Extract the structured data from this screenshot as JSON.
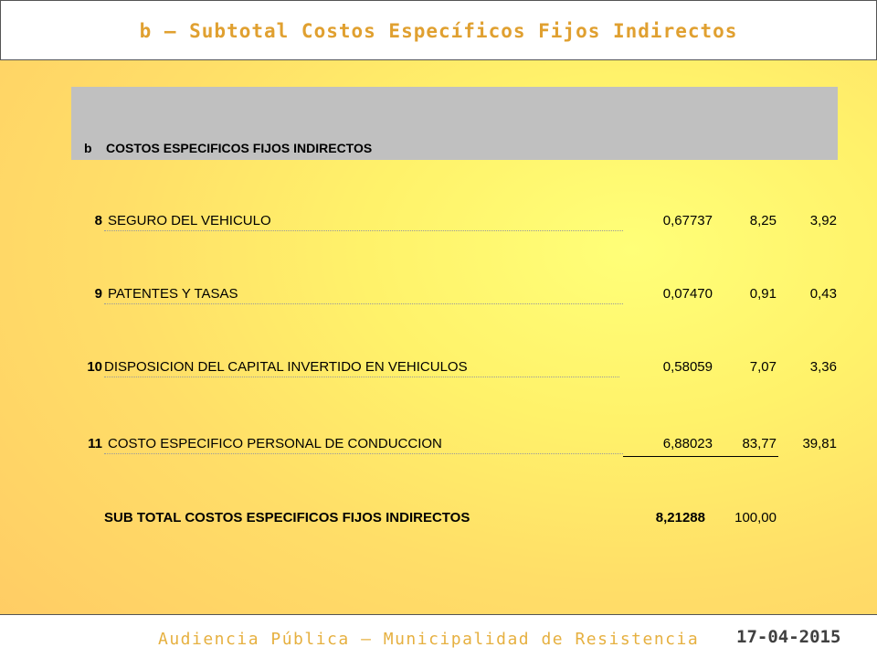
{
  "header": {
    "title": "b – Subtotal Costos Específicos Fijos Indirectos"
  },
  "table": {
    "section_code": "b",
    "section_label": "COSTOS ESPECIFICOS FIJOS INDIRECTOS",
    "rows": [
      {
        "num": "8",
        "desc": "SEGURO DEL VEHICULO",
        "v1": "0,67737",
        "v2": "8,25",
        "v3": "3,92"
      },
      {
        "num": "9",
        "desc": "PATENTES Y TASAS",
        "v1": "0,07470",
        "v2": "0,91",
        "v3": "0,43"
      },
      {
        "num": "10",
        "desc": "DISPOSICION DEL CAPITAL INVERTIDO EN VEHICULOS",
        "v1": "0,58059",
        "v2": "7,07",
        "v3": "3,36"
      },
      {
        "num": "11",
        "desc": "COSTO ESPECIFICO PERSONAL DE CONDUCCION",
        "v1": "6,88023",
        "v2": "83,77",
        "v3": "39,81"
      }
    ],
    "total": {
      "label": "SUB TOTAL COSTOS ESPECIFICOS FIJOS INDIRECTOS",
      "v1": "8,21288",
      "v2": "100,00"
    }
  },
  "footer": {
    "caption": "Audiencia Pública – Municipalidad de Resistencia",
    "date": "17-04-2015"
  }
}
